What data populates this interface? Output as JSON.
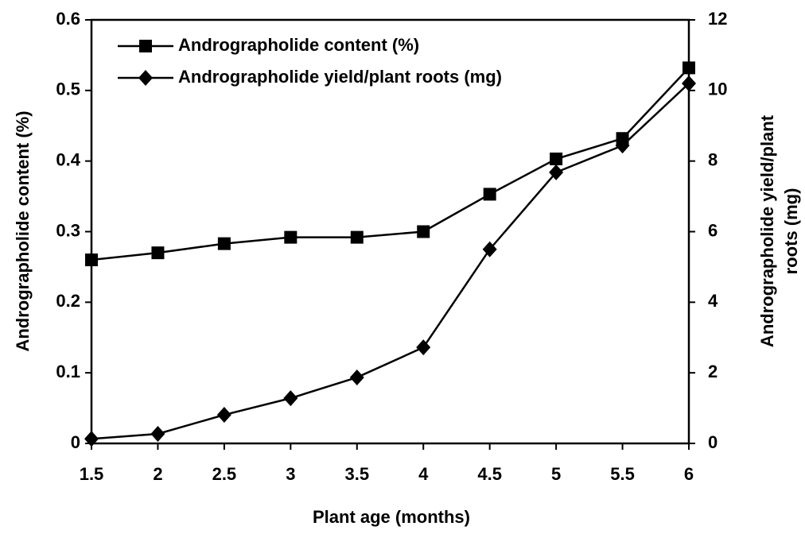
{
  "chart_data": {
    "type": "line",
    "xlabel": "Plant age (months)",
    "ylabel": "Andrographolide content (%)",
    "y2label": [
      "Andrographolide yield/plant",
      "roots (mg)"
    ],
    "x": [
      1.5,
      2,
      2.5,
      3,
      3.5,
      4,
      4.5,
      5,
      5.5,
      6
    ],
    "xlim": [
      1.5,
      6
    ],
    "xticks": [
      1.5,
      2,
      2.5,
      3,
      3.5,
      4,
      4.5,
      5,
      5.5,
      6
    ],
    "ylim": [
      0,
      0.6
    ],
    "yticks": [
      0,
      0.1,
      0.2,
      0.3,
      0.4,
      0.5,
      0.6
    ],
    "y2lim": [
      0,
      12
    ],
    "y2ticks": [
      0,
      2,
      4,
      6,
      8,
      10,
      12
    ],
    "legend": "upper left",
    "series": [
      {
        "name": "Andrographolide content (%)",
        "color": "#000000",
        "marker": "square",
        "values": [
          0.26,
          0.27,
          0.283,
          0.292,
          0.292,
          0.3,
          0.353,
          0.403,
          0.432,
          0.532
        ]
      },
      {
        "name": "Andrographolide yield/plant roots (mg)",
        "color": "#000000",
        "marker": "diamond",
        "axis": "y2",
        "values": [
          0.13,
          0.27,
          0.81,
          1.28,
          1.87,
          2.72,
          5.5,
          7.68,
          8.44,
          10.2
        ]
      }
    ]
  }
}
